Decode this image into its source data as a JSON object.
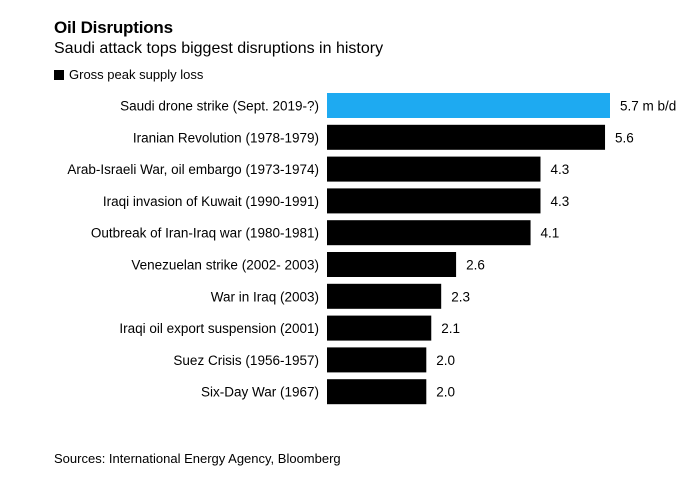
{
  "title": "Oil Disruptions",
  "subtitle": "Saudi attack tops biggest disruptions in history",
  "legend": {
    "label": "Gross peak supply loss"
  },
  "source": "Sources: International Energy Agency, Bloomberg",
  "colors": {
    "highlight": "#1eaaf1",
    "bar": "#000000"
  },
  "chart_data": {
    "type": "bar",
    "orientation": "horizontal",
    "title": "Oil Disruptions",
    "subtitle": "Saudi attack tops biggest disruptions in history",
    "xlabel": "",
    "ylabel": "",
    "xlim": [
      0,
      5.7
    ],
    "grid": false,
    "legend_position": "top-left",
    "series": [
      {
        "name": "Gross peak supply loss"
      }
    ],
    "bars": [
      {
        "category": "Saudi drone strike (Sept. 2019-?)",
        "value": 5.7,
        "label": "5.7 m b/d",
        "highlight": true
      },
      {
        "category": "Iranian Revolution (1978-1979)",
        "value": 5.6,
        "label": "5.6"
      },
      {
        "category": "Arab-Israeli War, oil embargo (1973-1974)",
        "value": 4.3,
        "label": "4.3"
      },
      {
        "category": "Iraqi invasion of Kuwait (1990-1991)",
        "value": 4.3,
        "label": "4.3"
      },
      {
        "category": "Outbreak of Iran-Iraq war (1980-1981)",
        "value": 4.1,
        "label": "4.1"
      },
      {
        "category": "Venezuelan strike (2002- 2003)",
        "value": 2.6,
        "label": "2.6"
      },
      {
        "category": "War in Iraq (2003)",
        "value": 2.3,
        "label": "2.3"
      },
      {
        "category": "Iraqi oil export suspension (2001)",
        "value": 2.1,
        "label": "2.1"
      },
      {
        "category": "Suez Crisis (1956-1957)",
        "value": 2.0,
        "label": "2.0"
      },
      {
        "category": "Six-Day War (1967)",
        "value": 2.0,
        "label": "2.0"
      }
    ]
  }
}
